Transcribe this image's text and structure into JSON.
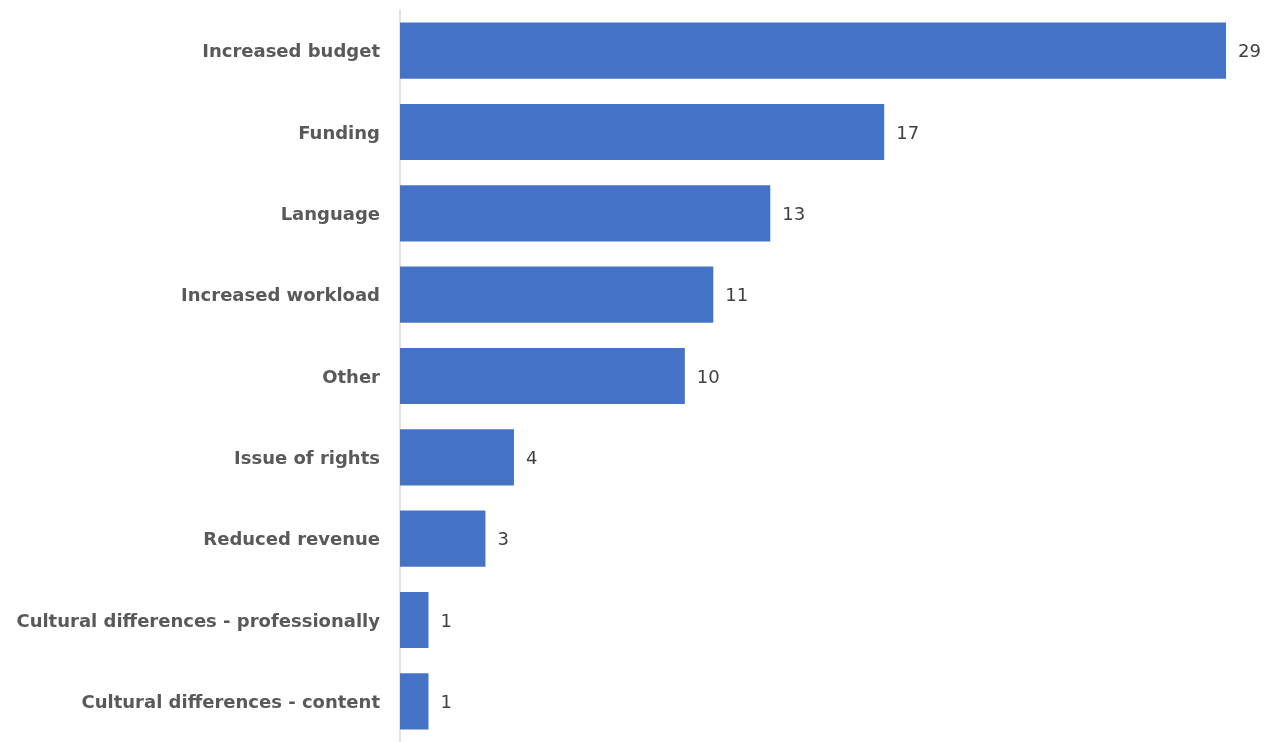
{
  "chart_data": {
    "type": "bar",
    "orientation": "horizontal",
    "categories": [
      "Increased budget",
      "Funding",
      "Language",
      "Increased workload",
      "Other",
      "Issue of rights",
      "Reduced revenue",
      "Cultural differences - professionally",
      "Cultural differences - content"
    ],
    "values": [
      29,
      17,
      13,
      11,
      10,
      4,
      3,
      1,
      1
    ],
    "color": "#4472c4",
    "data_labels": true
  }
}
